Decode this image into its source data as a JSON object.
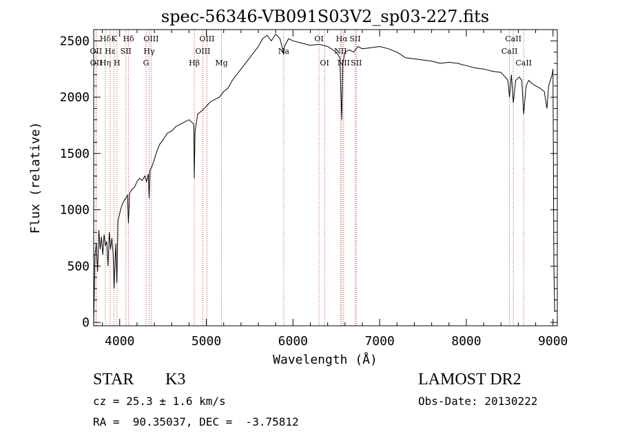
{
  "chart_data": {
    "type": "line",
    "title": "spec-56346-VB091S03V2_sp03-227.fits",
    "xlabel": "Wavelength (Å)",
    "ylabel": "Flux (relative)",
    "xlim": [
      3700,
      9050
    ],
    "ylim": [
      -30,
      2600
    ],
    "xticks": [
      4000,
      5000,
      6000,
      7000,
      8000,
      9000
    ],
    "yticks": [
      0,
      500,
      1000,
      1500,
      2000,
      2500
    ],
    "series": [
      {
        "name": "spectrum",
        "x": [
          3700,
          3715,
          3730,
          3745,
          3760,
          3775,
          3790,
          3805,
          3820,
          3835,
          3850,
          3865,
          3880,
          3895,
          3910,
          3925,
          3935,
          3945,
          3955,
          3968,
          3980,
          3995,
          4010,
          4030,
          4050,
          4070,
          4090,
          4101,
          4115,
          4140,
          4170,
          4200,
          4230,
          4260,
          4290,
          4310,
          4330,
          4340,
          4350,
          4370,
          4400,
          4430,
          4460,
          4500,
          4550,
          4600,
          4650,
          4700,
          4750,
          4800,
          4830,
          4855,
          4861,
          4870,
          4900,
          4950,
          5000,
          5050,
          5100,
          5150,
          5200,
          5250,
          5300,
          5400,
          5500,
          5600,
          5650,
          5700,
          5750,
          5800,
          5850,
          5893,
          5900,
          5950,
          6000,
          6100,
          6200,
          6300,
          6400,
          6500,
          6540,
          6563,
          6575,
          6600,
          6650,
          6700,
          6750,
          6800,
          6900,
          7000,
          7100,
          7200,
          7300,
          7400,
          7500,
          7600,
          7700,
          7800,
          7900,
          8000,
          8100,
          8200,
          8300,
          8400,
          8480,
          8498,
          8520,
          8542,
          8570,
          8610,
          8640,
          8662,
          8690,
          8720,
          8760,
          8800,
          8850,
          8900,
          8930,
          8950,
          8970,
          8990,
          9000,
          9010,
          9020
        ],
        "y": [
          0,
          600,
          700,
          450,
          820,
          650,
          760,
          600,
          780,
          680,
          720,
          500,
          800,
          650,
          750,
          600,
          300,
          500,
          700,
          350,
          900,
          950,
          1000,
          1050,
          1080,
          1100,
          1130,
          880,
          1150,
          1180,
          1200,
          1250,
          1280,
          1260,
          1300,
          1250,
          1320,
          1100,
          1350,
          1380,
          1450,
          1520,
          1580,
          1620,
          1680,
          1700,
          1740,
          1760,
          1780,
          1800,
          1780,
          1760,
          1280,
          1700,
          1850,
          1880,
          1920,
          1960,
          1980,
          2000,
          2050,
          2080,
          2150,
          2250,
          2350,
          2450,
          2520,
          2550,
          2500,
          2560,
          2520,
          2380,
          2450,
          2520,
          2500,
          2480,
          2460,
          2470,
          2450,
          2400,
          2350,
          1800,
          2300,
          2400,
          2420,
          2400,
          2450,
          2430,
          2440,
          2450,
          2430,
          2400,
          2350,
          2340,
          2330,
          2320,
          2300,
          2310,
          2300,
          2280,
          2260,
          2250,
          2230,
          2220,
          2150,
          2000,
          2200,
          1950,
          2150,
          2180,
          2150,
          1850,
          2100,
          2150,
          2120,
          2100,
          2080,
          2050,
          1900,
          2100,
          2150,
          2200,
          2250,
          500,
          100
        ]
      }
    ],
    "lines": [
      {
        "label": "Hδ",
        "x": 3835,
        "row": 0
      },
      {
        "label": "OII",
        "x": 3727,
        "row": 1
      },
      {
        "label": "OII",
        "x": 3729,
        "row": 2
      },
      {
        "label": "Hε",
        "x": 3889,
        "row": 1
      },
      {
        "label": "Hη",
        "x": 3835,
        "row": 2
      },
      {
        "label": "K",
        "x": 3934,
        "row": 0
      },
      {
        "label": "H",
        "x": 3969,
        "row": 2
      },
      {
        "label": "SII",
        "x": 4072,
        "row": 1
      },
      {
        "label": "Hδ",
        "x": 4102,
        "row": 0
      },
      {
        "label": "OIII",
        "x": 4363,
        "row": 0
      },
      {
        "label": "Hγ",
        "x": 4340,
        "row": 1
      },
      {
        "label": "G",
        "x": 4304,
        "row": 2
      },
      {
        "label": "Hβ",
        "x": 4861,
        "row": 2
      },
      {
        "label": "OIII",
        "x": 4959,
        "row": 1
      },
      {
        "label": "OIII",
        "x": 5007,
        "row": 0
      },
      {
        "label": "Mg",
        "x": 5175,
        "row": 2
      },
      {
        "label": "Na",
        "x": 5893,
        "row": 1
      },
      {
        "label": "OI",
        "x": 6300,
        "row": 0
      },
      {
        "label": "OI",
        "x": 6364,
        "row": 2
      },
      {
        "label": "Hα",
        "x": 6563,
        "row": 0
      },
      {
        "label": "NII",
        "x": 6548,
        "row": 1
      },
      {
        "label": "NII",
        "x": 6584,
        "row": 2
      },
      {
        "label": "SII",
        "x": 6717,
        "row": 0
      },
      {
        "label": "SII",
        "x": 6731,
        "row": 2
      },
      {
        "label": "CaII",
        "x": 8498,
        "row": 1
      },
      {
        "label": "CaII",
        "x": 8542,
        "row": 0
      },
      {
        "label": "CaII",
        "x": 8662,
        "row": 2
      }
    ]
  },
  "info": {
    "object_class": "STAR",
    "subclass": "K3",
    "redshift": "cz = 25.3 ± 1.6 km/s",
    "coords": "RA =  90.35037, DEC =  -3.75812",
    "survey": "LAMOST DR2",
    "obs_date": "Obs-Date: 20130222"
  }
}
